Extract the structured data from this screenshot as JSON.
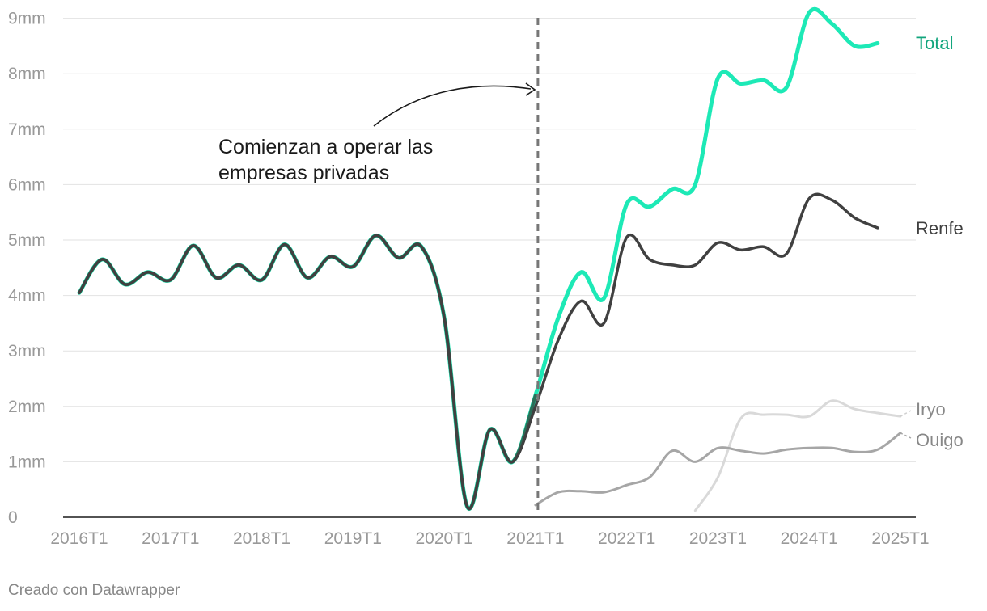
{
  "chart_data": {
    "type": "line",
    "title": "",
    "xlabel": "",
    "ylabel": "",
    "x": [
      "2016T1",
      "2016T2",
      "2016T3",
      "2016T4",
      "2017T1",
      "2017T2",
      "2017T3",
      "2017T4",
      "2018T1",
      "2018T2",
      "2018T3",
      "2018T4",
      "2019T1",
      "2019T2",
      "2019T3",
      "2019T4",
      "2020T1",
      "2020T2",
      "2020T3",
      "2020T4",
      "2021T1",
      "2021T2",
      "2021T3",
      "2021T4",
      "2022T1",
      "2022T2",
      "2022T3",
      "2022T4",
      "2023T1",
      "2023T2",
      "2023T3",
      "2023T4",
      "2024T1",
      "2024T2",
      "2024T3",
      "2024T4",
      "2025T1"
    ],
    "x_ticks": [
      "2016T1",
      "2017T1",
      "2018T1",
      "2019T1",
      "2020T1",
      "2021T1",
      "2022T1",
      "2023T1",
      "2024T1",
      "2025T1"
    ],
    "y_ticks": [
      {
        "value": 0,
        "label": "0"
      },
      {
        "value": 1,
        "label": "1mm"
      },
      {
        "value": 2,
        "label": "2mm"
      },
      {
        "value": 3,
        "label": "3mm"
      },
      {
        "value": 4,
        "label": "4mm"
      },
      {
        "value": 5,
        "label": "5mm"
      },
      {
        "value": 6,
        "label": "6mm"
      },
      {
        "value": 7,
        "label": "7mm"
      },
      {
        "value": 8,
        "label": "8mm"
      },
      {
        "value": 9,
        "label": "9mm"
      }
    ],
    "ylim": [
      0,
      9.3
    ],
    "grid": "horizontal",
    "series": [
      {
        "name": "Total",
        "color": "#1de9b6",
        "values": [
          4.05,
          4.65,
          4.2,
          4.42,
          4.28,
          4.9,
          4.32,
          4.55,
          4.28,
          4.92,
          4.32,
          4.7,
          4.52,
          5.08,
          4.68,
          4.88,
          3.6,
          0.2,
          1.58,
          1.0,
          2.2,
          3.6,
          4.42,
          3.95,
          5.65,
          5.6,
          5.92,
          6.0,
          7.92,
          7.82,
          7.88,
          7.75,
          9.1,
          8.9,
          8.5,
          8.55,
          null
        ]
      },
      {
        "name": "Renfe",
        "color": "#404040",
        "values": [
          4.05,
          4.65,
          4.2,
          4.42,
          4.28,
          4.9,
          4.32,
          4.55,
          4.28,
          4.92,
          4.32,
          4.7,
          4.52,
          5.08,
          4.68,
          4.88,
          3.6,
          0.2,
          1.58,
          1.0,
          2.0,
          3.2,
          3.9,
          3.5,
          5.05,
          4.65,
          4.55,
          4.55,
          4.95,
          4.82,
          4.88,
          4.75,
          5.75,
          5.72,
          5.4,
          5.22,
          null
        ]
      },
      {
        "name": "Iryo",
        "color": "#d9d9d9",
        "values": [
          null,
          null,
          null,
          null,
          null,
          null,
          null,
          null,
          null,
          null,
          null,
          null,
          null,
          null,
          null,
          null,
          null,
          null,
          null,
          null,
          null,
          null,
          null,
          null,
          null,
          null,
          null,
          0.12,
          0.72,
          1.78,
          1.85,
          1.85,
          1.82,
          2.1,
          1.95,
          1.88,
          1.82
        ]
      },
      {
        "name": "Ouigo",
        "color": "#a6a6a6",
        "values": [
          null,
          null,
          null,
          null,
          null,
          null,
          null,
          null,
          null,
          null,
          null,
          null,
          null,
          null,
          null,
          null,
          null,
          null,
          null,
          null,
          0.22,
          0.45,
          0.47,
          0.45,
          0.58,
          0.72,
          1.2,
          1.0,
          1.25,
          1.2,
          1.15,
          1.22,
          1.25,
          1.25,
          1.18,
          1.22,
          1.52
        ]
      }
    ],
    "labels": {
      "total": "Total",
      "renfe": "Renfe",
      "iryo": "Iryo",
      "ouigo": "Ouigo"
    },
    "reference_line": {
      "x": "2021T1",
      "style": "dashed"
    },
    "annotation": {
      "line1": "Comienzan a operar las",
      "line2": "empresas privadas"
    }
  },
  "footer": {
    "credit": "Creado con Datawrapper"
  }
}
